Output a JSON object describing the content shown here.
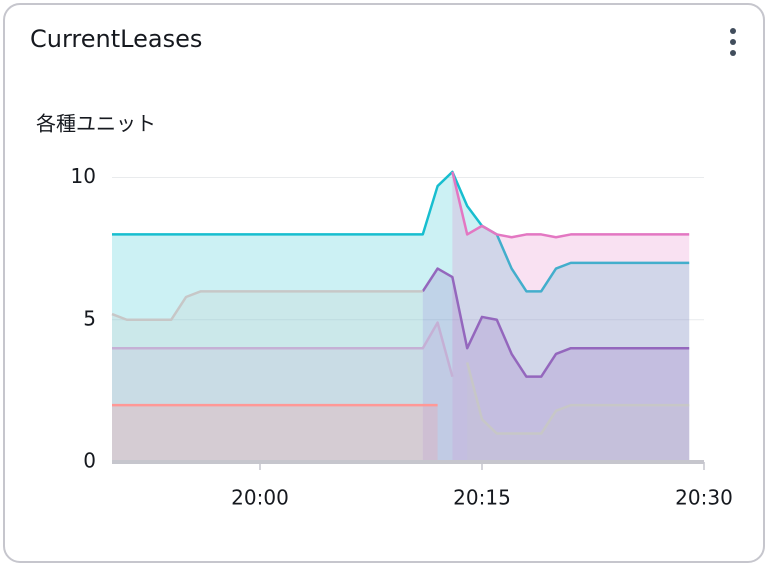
{
  "chart_data": {
    "type": "area",
    "title": "CurrentLeases",
    "y_label": "各種ユニット",
    "x": [
      "19:50",
      "19:51",
      "19:52",
      "19:53",
      "19:54",
      "19:55",
      "19:56",
      "19:57",
      "19:58",
      "19:59",
      "20:00",
      "20:01",
      "20:02",
      "20:03",
      "20:04",
      "20:05",
      "20:06",
      "20:07",
      "20:08",
      "20:09",
      "20:10",
      "20:11",
      "20:12",
      "20:13",
      "20:14",
      "20:15",
      "20:16",
      "20:17",
      "20:18",
      "20:19",
      "20:20",
      "20:21",
      "20:22",
      "20:23",
      "20:24",
      "20:25",
      "20:26",
      "20:27",
      "20:28",
      "20:29"
    ],
    "xlim": [
      "19:50",
      "20:30"
    ],
    "xticks": [
      "20:00",
      "20:15",
      "20:30"
    ],
    "ylim": [
      0,
      10.3
    ],
    "yticks": [
      0,
      5,
      10
    ],
    "grid": true,
    "series": [
      {
        "color": "#17becf",
        "values": [
          8,
          8,
          8,
          8,
          8,
          8,
          8,
          8,
          8,
          8,
          8,
          8,
          8,
          8,
          8,
          8,
          8,
          8,
          8,
          8,
          8,
          8,
          9.7,
          10.2,
          9.0,
          8.3,
          8.0,
          6.8,
          6.0,
          6.0,
          6.8,
          7,
          7,
          7,
          7,
          7,
          7,
          7,
          7,
          7
        ]
      },
      {
        "color": "#e377c2",
        "values": [
          null,
          null,
          null,
          null,
          null,
          null,
          null,
          null,
          null,
          null,
          null,
          null,
          null,
          null,
          null,
          null,
          null,
          null,
          null,
          null,
          null,
          null,
          null,
          10.2,
          8.0,
          8.3,
          8.0,
          7.9,
          8.0,
          8.0,
          7.9,
          8,
          8,
          8,
          8,
          8,
          8,
          8,
          8,
          8
        ]
      },
      {
        "color": "#9467bd",
        "values": [
          null,
          null,
          null,
          null,
          null,
          null,
          null,
          null,
          null,
          null,
          null,
          null,
          null,
          null,
          null,
          null,
          null,
          null,
          null,
          null,
          null,
          6,
          6.8,
          6.5,
          4.0,
          5.1,
          5.0,
          3.8,
          3.0,
          3.0,
          3.8,
          4,
          4,
          4,
          4,
          4,
          4,
          4,
          4,
          4
        ]
      },
      {
        "color": "#c7c7c7",
        "values": [
          5.2,
          5,
          5,
          5,
          5,
          5.8,
          6,
          6,
          6,
          6,
          6,
          6,
          6,
          6,
          6,
          6,
          6,
          6,
          6,
          6,
          6,
          6,
          null,
          null,
          3.5,
          1.5,
          1.0,
          1.0,
          1.0,
          1.0,
          1.8,
          2,
          2,
          2,
          2,
          2,
          2,
          2,
          2,
          2
        ]
      },
      {
        "color": "#c5b0d5",
        "values": [
          4,
          4,
          4,
          4,
          4,
          4,
          4,
          4,
          4,
          4,
          4,
          4,
          4,
          4,
          4,
          4,
          4,
          4,
          4,
          4,
          4,
          4,
          4.9,
          3.0,
          null,
          null,
          null,
          null,
          null,
          null,
          null,
          null,
          null,
          null,
          null,
          null,
          null,
          null,
          null,
          null
        ]
      },
      {
        "color": "#ff9896",
        "values": [
          2,
          2,
          2,
          2,
          2,
          2,
          2,
          2,
          2,
          2,
          2,
          2,
          2,
          2,
          2,
          2,
          2,
          2,
          2,
          2,
          2,
          2,
          2,
          null,
          null,
          null,
          null,
          null,
          null,
          null,
          null,
          null,
          null,
          null,
          null,
          null,
          null,
          null,
          null,
          null
        ]
      }
    ]
  }
}
